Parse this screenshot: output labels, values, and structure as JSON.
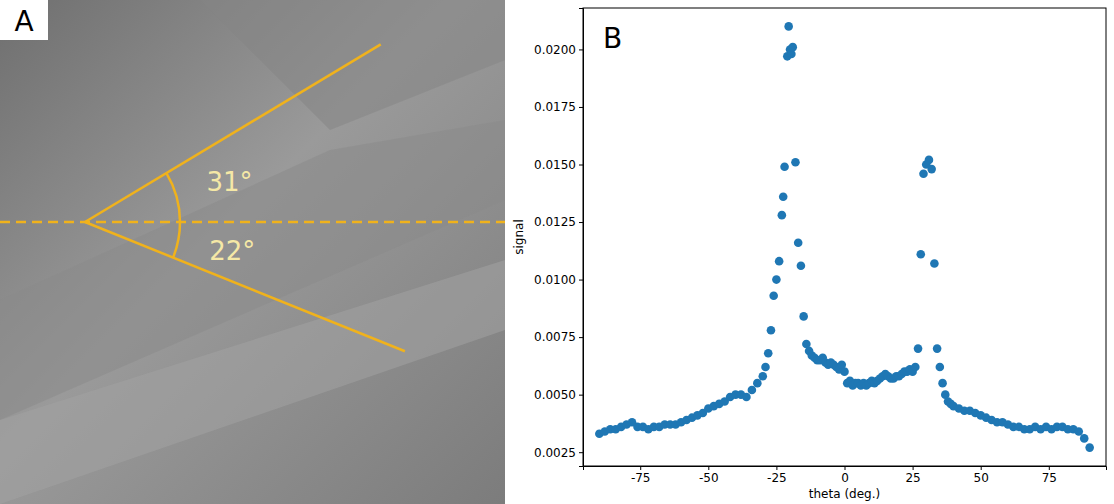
{
  "panel_a": {
    "label": "A",
    "angles": [
      {
        "value": 31,
        "label": "31°",
        "side": "above"
      },
      {
        "value": 22,
        "label": "22°",
        "side": "below"
      }
    ]
  },
  "chart_data": {
    "type": "scatter",
    "panel_label": "B",
    "x_label": "theta (deg.)",
    "y_label": "signal",
    "color": "#1f77b4",
    "marker": "circle",
    "xlim": [
      -96,
      96
    ],
    "xticks": [
      -75,
      -50,
      -25,
      0,
      25,
      50,
      75
    ],
    "ylim": [
      0.0019,
      0.0218
    ],
    "yticks": [
      0.0025,
      {
        "value": 0.005,
        "label": "0.0050"
      },
      0.0075,
      {
        "value": 0.01,
        "label": "0.0100"
      },
      0.0125,
      {
        "value": 0.015,
        "label": "0.0150"
      },
      0.0175,
      {
        "value": 0.02,
        "label": "0.0200"
      }
    ],
    "x": [
      -90,
      -88,
      -86,
      -84,
      -82,
      -80,
      -78,
      -76,
      -74,
      -72,
      -70,
      -68,
      -66,
      -64,
      -62,
      -60,
      -58,
      -56,
      -54,
      -52,
      -50,
      -48,
      -46,
      -44,
      -42,
      -40,
      -38,
      -36,
      -34,
      -32,
      -30,
      -29,
      -28,
      -27,
      -26,
      -25,
      -24,
      -23,
      -22.5,
      -22,
      -21,
      -20.5,
      -20,
      -19.5,
      -19,
      -18,
      -17,
      -16,
      -15,
      -14,
      -13,
      -12,
      -11,
      -10,
      -9,
      -8,
      -7,
      -6,
      -5,
      -4,
      -3,
      -2,
      -1,
      0,
      1,
      2,
      3,
      4,
      5,
      6,
      7,
      8,
      9,
      10,
      11,
      12,
      13,
      14,
      15,
      16,
      17,
      18,
      19,
      20,
      21,
      22,
      23,
      24,
      25,
      26,
      27,
      28,
      29,
      30,
      31,
      32,
      33,
      34,
      35,
      36,
      37,
      38,
      39,
      40,
      42,
      44,
      46,
      48,
      50,
      52,
      54,
      56,
      58,
      60,
      62,
      64,
      66,
      68,
      70,
      72,
      74,
      76,
      78,
      80,
      82,
      84,
      86,
      88,
      90
    ],
    "values": [
      0.0033,
      0.0034,
      0.0035,
      0.0035,
      0.0036,
      0.0037,
      0.0038,
      0.0036,
      0.0036,
      0.0035,
      0.0036,
      0.0036,
      0.0037,
      0.0037,
      0.0037,
      0.0038,
      0.0039,
      0.004,
      0.0041,
      0.0042,
      0.0044,
      0.0045,
      0.0046,
      0.0047,
      0.0049,
      0.005,
      0.005,
      0.0049,
      0.0052,
      0.0055,
      0.0058,
      0.0062,
      0.0068,
      0.0078,
      0.0093,
      0.01,
      0.0108,
      0.0128,
      0.0136,
      0.0149,
      0.0197,
      0.021,
      0.02,
      0.0198,
      0.0201,
      0.0151,
      0.0116,
      0.0106,
      0.0084,
      0.0072,
      0.0069,
      0.0067,
      0.0066,
      0.0065,
      0.0065,
      0.0066,
      0.0064,
      0.0063,
      0.0064,
      0.0063,
      0.0062,
      0.0061,
      0.0063,
      0.006,
      0.0055,
      0.0056,
      0.0054,
      0.0055,
      0.0055,
      0.0054,
      0.0055,
      0.0054,
      0.0055,
      0.0056,
      0.0055,
      0.0056,
      0.0057,
      0.0058,
      0.0059,
      0.0058,
      0.0057,
      0.0057,
      0.0058,
      0.0058,
      0.0059,
      0.006,
      0.006,
      0.0061,
      0.006,
      0.0062,
      0.007,
      0.0111,
      0.0146,
      0.015,
      0.0152,
      0.0148,
      0.0107,
      0.007,
      0.0062,
      0.0055,
      0.005,
      0.0047,
      0.0046,
      0.0045,
      0.0044,
      0.0043,
      0.0043,
      0.0042,
      0.0041,
      0.004,
      0.0039,
      0.0038,
      0.0038,
      0.0037,
      0.0036,
      0.0036,
      0.0035,
      0.0035,
      0.0036,
      0.0035,
      0.0036,
      0.0035,
      0.0036,
      0.0036,
      0.0035,
      0.0035,
      0.0034,
      0.0031,
      0.0027
    ]
  }
}
